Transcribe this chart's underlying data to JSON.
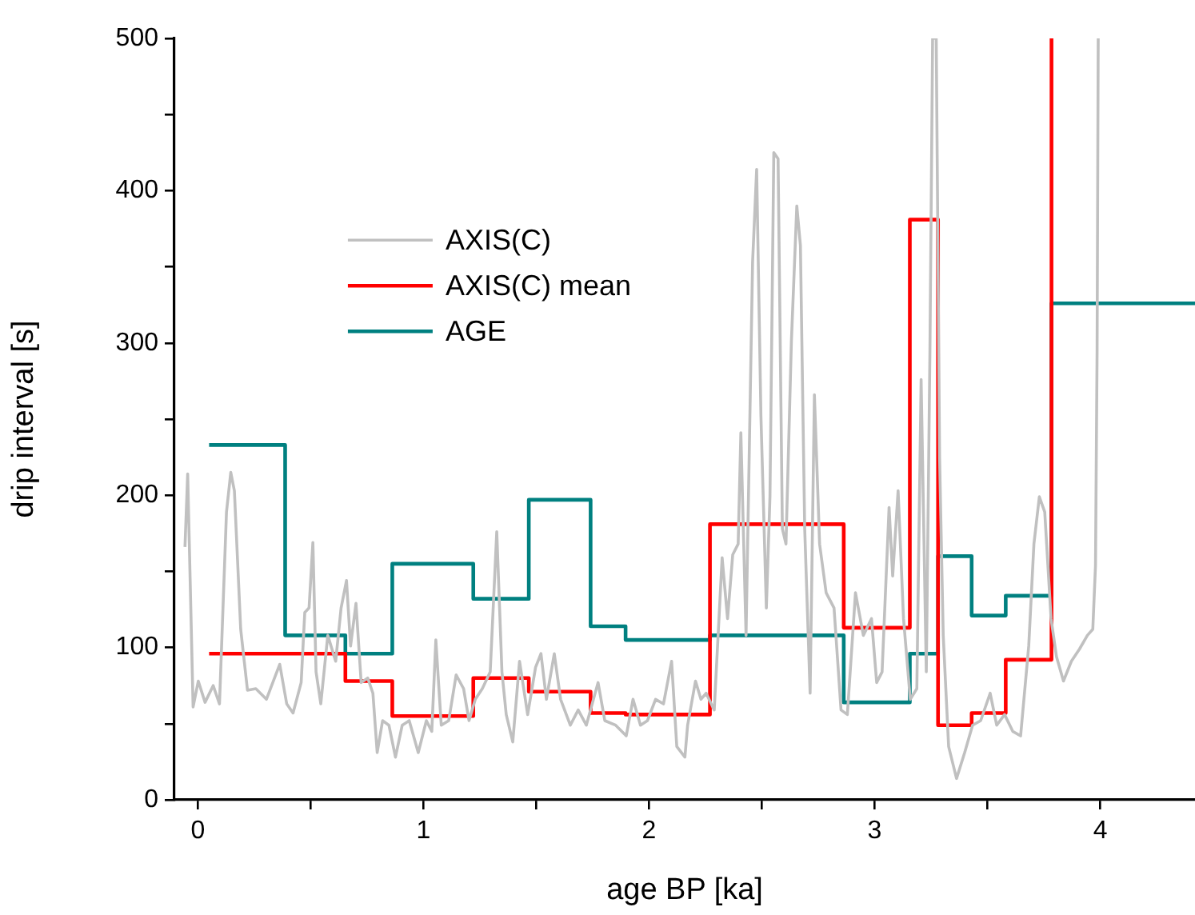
{
  "chart_data": {
    "type": "line",
    "xlabel": "age BP [ka]",
    "ylabel": "drip interval [s]",
    "xlim": [
      -0.104,
      4.42
    ],
    "xticks": [
      0,
      {
        "value": 0.5,
        "label": null
      },
      1,
      {
        "value": 1.5,
        "label": null
      },
      2,
      {
        "value": 2.5,
        "label": null
      },
      3,
      {
        "value": 3.5,
        "label": null
      },
      4
    ],
    "ylim": [
      0,
      500
    ],
    "yticks": [
      0,
      {
        "value": 50,
        "label": null
      },
      100,
      {
        "value": 150,
        "label": null
      },
      200,
      {
        "value": 250,
        "label": null
      },
      300,
      {
        "value": 350,
        "label": null
      },
      400,
      {
        "value": 450,
        "label": null
      },
      500
    ],
    "grid": false,
    "legend": "top left",
    "marker": "none",
    "line_style": "solid",
    "series": [
      {
        "name": "AXIS(C)",
        "color": "#c0c0c0",
        "x": [
          -0.057,
          -0.045,
          -0.021,
          0.002,
          0.032,
          0.068,
          0.096,
          0.127,
          0.146,
          0.162,
          0.19,
          0.22,
          0.257,
          0.304,
          0.34,
          0.363,
          0.394,
          0.422,
          0.458,
          0.474,
          0.493,
          0.51,
          0.524,
          0.545,
          0.576,
          0.611,
          0.635,
          0.659,
          0.677,
          0.701,
          0.724,
          0.753,
          0.776,
          0.795,
          0.819,
          0.847,
          0.876,
          0.906,
          0.937,
          0.977,
          1.013,
          1.037,
          1.055,
          1.079,
          1.112,
          1.145,
          1.178,
          1.202,
          1.23,
          1.261,
          1.296,
          1.325,
          1.348,
          1.367,
          1.396,
          1.426,
          1.462,
          1.497,
          1.521,
          1.545,
          1.58,
          1.608,
          1.651,
          1.686,
          1.722,
          1.774,
          1.804,
          1.852,
          1.899,
          1.929,
          1.962,
          1.993,
          2.029,
          2.064,
          2.1,
          2.123,
          2.159,
          2.171,
          2.206,
          2.23,
          2.253,
          2.289,
          2.324,
          2.348,
          2.371,
          2.395,
          2.407,
          2.43,
          2.459,
          2.477,
          2.496,
          2.52,
          2.536,
          2.553,
          2.572,
          2.591,
          2.607,
          2.631,
          2.655,
          2.671,
          2.69,
          2.714,
          2.733,
          2.756,
          2.785,
          2.82,
          2.851,
          2.879,
          2.915,
          2.95,
          2.986,
          3.009,
          3.033,
          3.064,
          3.08,
          3.104,
          3.128,
          3.158,
          3.187,
          3.206,
          3.229,
          3.245,
          3.257,
          3.273,
          3.288,
          3.304,
          3.328,
          3.363,
          3.399,
          3.434,
          3.47,
          3.512,
          3.541,
          3.576,
          3.612,
          3.647,
          3.683,
          3.706,
          3.73,
          3.754,
          3.782,
          3.806,
          3.837,
          3.872,
          3.908,
          3.943,
          3.967,
          3.979,
          3.986,
          3.991
        ],
        "values": [
          166,
          214,
          61,
          78,
          64,
          75,
          63,
          189,
          215,
          203,
          112,
          72,
          73,
          66,
          80,
          89,
          63,
          57,
          77,
          123,
          126,
          169,
          84,
          63,
          108,
          91,
          126,
          144,
          101,
          129,
          77,
          80,
          70,
          31,
          52,
          49,
          28,
          49,
          52,
          31,
          52,
          45,
          105,
          49,
          52,
          82,
          73,
          52,
          66,
          73,
          84,
          176,
          84,
          56,
          38,
          91,
          56,
          87,
          96,
          66,
          96,
          66,
          49,
          59,
          49,
          77,
          52,
          49,
          42,
          66,
          49,
          52,
          66,
          63,
          91,
          35,
          28,
          49,
          78,
          66,
          70,
          59,
          159,
          119,
          161,
          168,
          241,
          108,
          353,
          414,
          252,
          126,
          199,
          425,
          421,
          178,
          168,
          301,
          390,
          364,
          178,
          70,
          266,
          168,
          136,
          126,
          59,
          56,
          136,
          108,
          119,
          77,
          84,
          192,
          147,
          203,
          119,
          66,
          73,
          276,
          84,
          294,
          500,
          500,
          224,
          108,
          35,
          14,
          31,
          49,
          52,
          70,
          49,
          56,
          45,
          42,
          101,
          168,
          199,
          189,
          119,
          94,
          78,
          91,
          99,
          108,
          112,
          154,
          294,
          500
        ]
      },
      {
        "name": "AXIS(C) mean",
        "type": "step",
        "color": "#ff0000",
        "x": [
          0.05,
          0.654,
          0.862,
          1.221,
          1.467,
          1.741,
          1.896,
          2.27,
          2.863,
          3.156,
          3.281,
          3.43,
          3.581,
          3.784
        ],
        "values": [
          96,
          78,
          55,
          80,
          71,
          57,
          56,
          181,
          113,
          381,
          49,
          57,
          92,
          500
        ]
      },
      {
        "name": "AGE",
        "type": "step",
        "color": "#008080",
        "x": [
          0.05,
          0.387,
          0.654,
          0.862,
          1.221,
          1.467,
          1.741,
          1.896,
          2.27,
          2.863,
          3.156,
          3.281,
          3.43,
          3.581,
          3.784,
          4.42
        ],
        "values": [
          233,
          108,
          96,
          155,
          132,
          197,
          114,
          105,
          108,
          64,
          96,
          160,
          121,
          134,
          326,
          326
        ]
      }
    ]
  }
}
